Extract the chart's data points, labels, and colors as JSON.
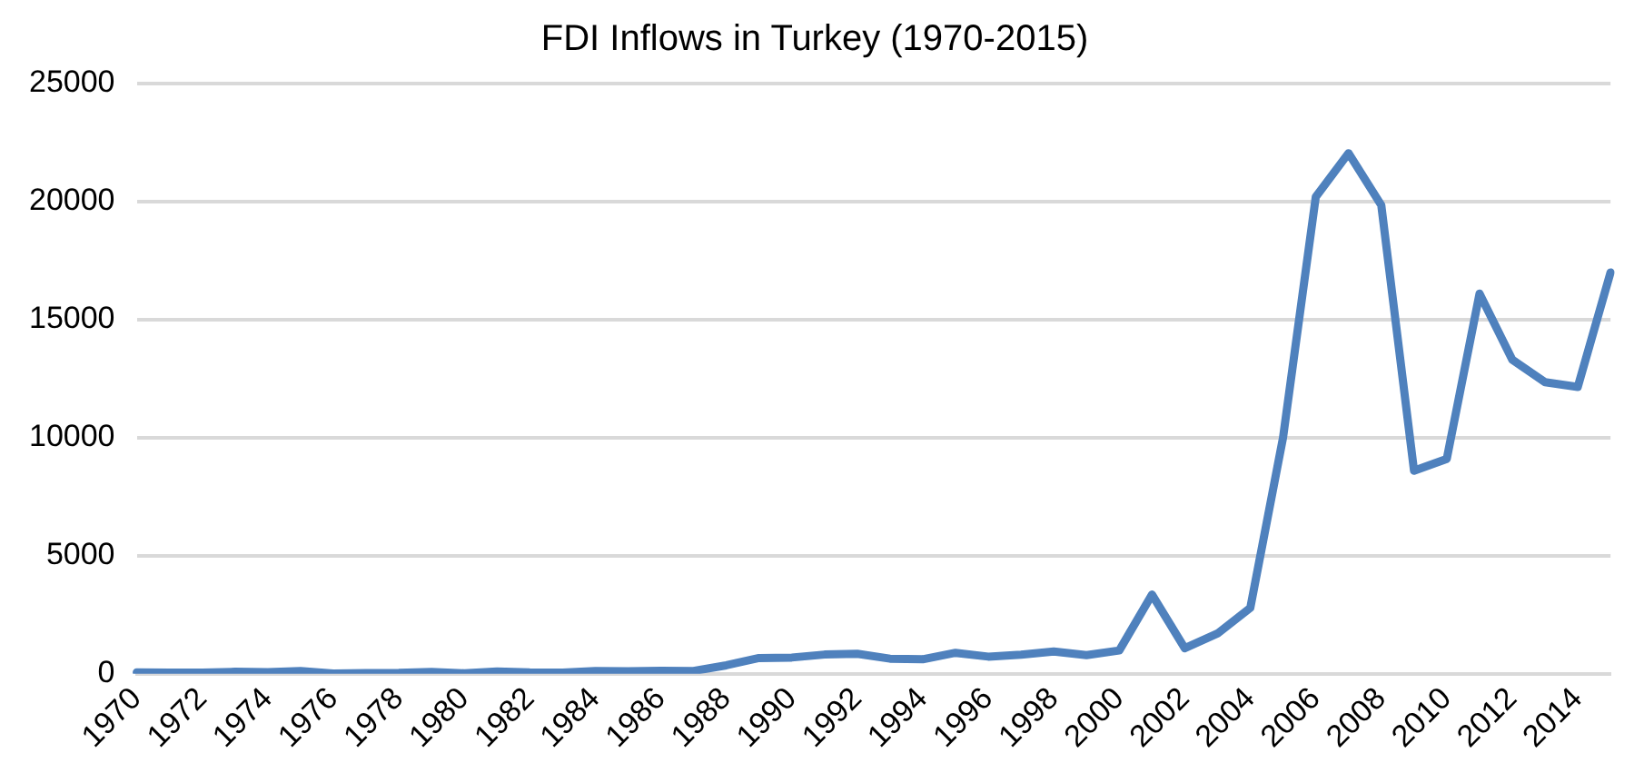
{
  "chart_data": {
    "type": "line",
    "title": "FDI Inflows in Turkey (1970-2015)",
    "categories": [
      "1970",
      null,
      "1972",
      null,
      "1974",
      null,
      "1976",
      null,
      "1978",
      null,
      "1980",
      null,
      "1982",
      null,
      "1984",
      null,
      "1986",
      null,
      "1988",
      null,
      "1990",
      null,
      "1992",
      null,
      "1994",
      null,
      "1996",
      null,
      "1998",
      null,
      "2000",
      null,
      "2002",
      null,
      "2004",
      null,
      "2006",
      null,
      "2008",
      null,
      "2010",
      null,
      "2012",
      null,
      "2014",
      null
    ],
    "series": [
      {
        "color": "#4f81bd",
        "values": [
          58,
          45,
          43,
          79,
          64,
          114,
          10,
          27,
          34,
          75,
          18,
          95,
          55,
          46,
          113,
          99,
          125,
          115,
          354,
          663,
          684,
          810,
          844,
          636,
          608,
          885,
          722,
          805,
          940,
          783,
          982,
          3352,
          1082,
          1702,
          2785,
          10000,
          20200,
          22050,
          19850,
          8600,
          9100,
          16100,
          13300,
          12350,
          12150,
          17000
        ]
      }
    ],
    "ylim": [
      0,
      25000
    ],
    "yticks": [
      0,
      5000,
      10000,
      15000,
      20000,
      25000
    ],
    "grid": "y",
    "legend": false,
    "marker": "none"
  }
}
